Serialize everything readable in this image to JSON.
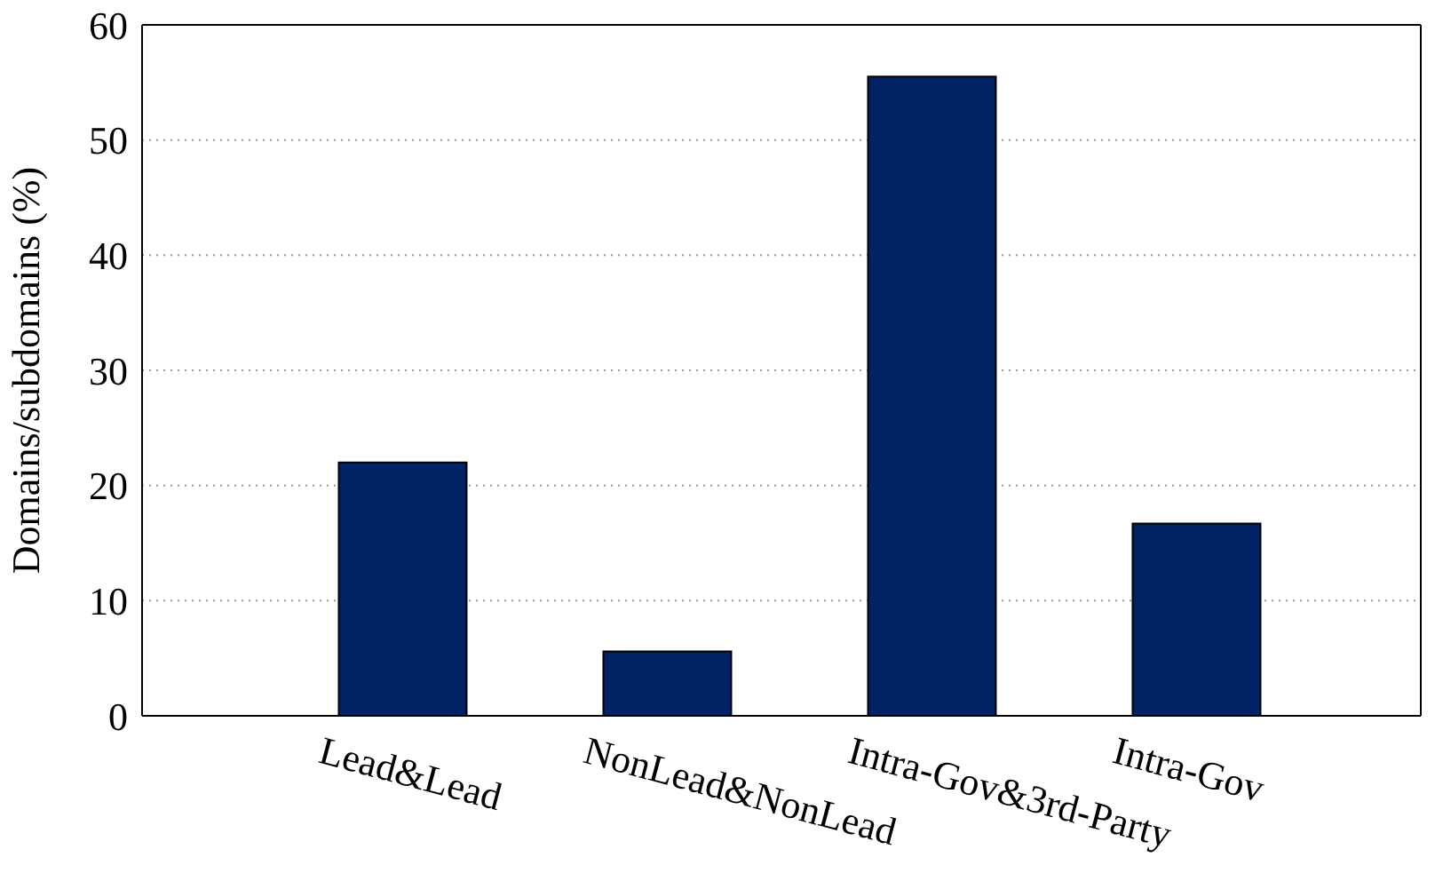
{
  "chart_data": {
    "type": "bar",
    "ylabel": "Domains/subdomains (%)",
    "categories": [
      "Lead&Lead",
      "NonLead&NonLead",
      "Intra-Gov&3rd-Party",
      "Intra-Gov"
    ],
    "values": [
      22,
      5.6,
      55.5,
      16.7
    ],
    "color": "#022266",
    "ylim": [
      0,
      60
    ],
    "yticks": [
      0,
      10,
      20,
      30,
      40,
      50,
      60
    ],
    "grid": "y"
  }
}
